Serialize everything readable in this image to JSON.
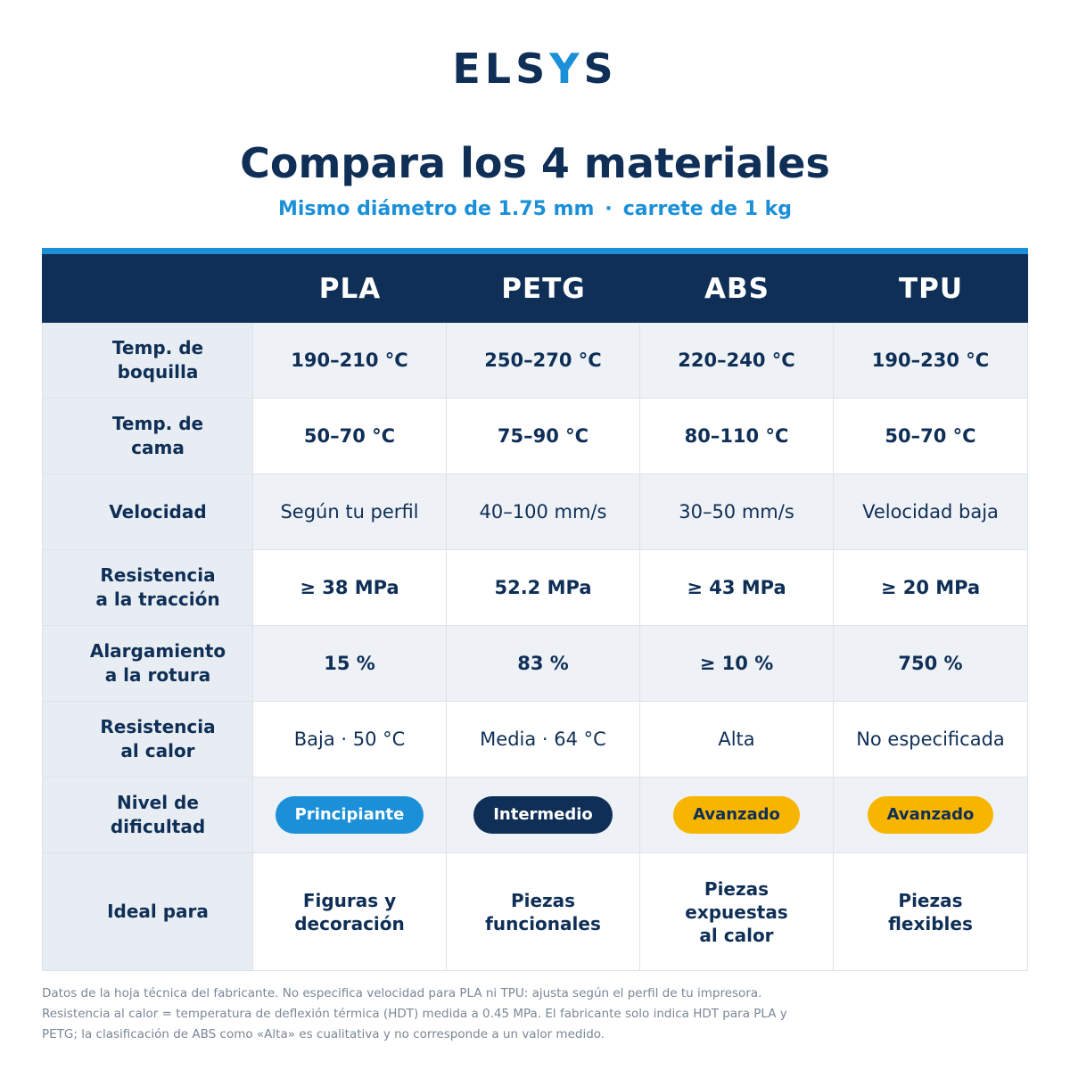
{
  "brand": {
    "logo_text_1": "ELS",
    "logo_text_2": "Y",
    "logo_text_3": "S"
  },
  "header": {
    "title": "Compara los 4 materiales",
    "subtitle_left": "Mismo diámetro de 1.75 mm",
    "subtitle_sep": "·",
    "subtitle_right": "carrete de 1 kg"
  },
  "colors": {
    "navy": "#0f2f57",
    "accent": "#1b90d8",
    "yellow": "#f7b500"
  },
  "table": {
    "columns": [
      "",
      "PLA",
      "PETG",
      "ABS",
      "TPU"
    ],
    "rows": [
      {
        "label": "Temp. de\nboquilla",
        "values": [
          "190–210 °C",
          "250–270 °C",
          "220–240 °C",
          "190–230 °C"
        ]
      },
      {
        "label": "Temp. de\ncama",
        "values": [
          "50–70 °C",
          "75–90 °C",
          "80–110 °C",
          "50–70 °C"
        ]
      },
      {
        "label": "Velocidad",
        "values": [
          "Según tu perfil",
          "40–100 mm/s",
          "30–50 mm/s",
          "Velocidad baja"
        ]
      },
      {
        "label": "Resistencia\na la tracción",
        "values": [
          "≥ 38 MPa",
          "52.2 MPa",
          "≥ 43 MPa",
          "≥ 20 MPa"
        ]
      },
      {
        "label": "Alargamiento\na la rotura",
        "values": [
          "15 %",
          "83 %",
          "≥ 10 %",
          "750 %"
        ]
      },
      {
        "label": "Resistencia\nal calor",
        "values": [
          "Baja · 50 °C",
          "Media · 64 °C",
          "Alta",
          "No especificada"
        ]
      },
      {
        "label": "Nivel de\ndificultad",
        "values": [
          "Principiante",
          "Intermedio",
          "Avanzado",
          "Avanzado"
        ]
      },
      {
        "label": "Ideal para",
        "values": [
          "Figuras y\ndecoración",
          "Piezas\nfuncionales",
          "Piezas\nexpuestas\nal calor",
          "Piezas\nflexibles"
        ]
      }
    ]
  },
  "footnote": {
    "line1": "Datos de la hoja técnica del fabricante. No especifica velocidad para PLA ni TPU: ajusta según el perfil de tu impresora.",
    "line2": "Resistencia al calor = temperatura de deflexión térmica (HDT) medida a 0.45 MPa. El fabricante solo indica HDT para PLA y",
    "line3": "PETG; la clasificación de ABS como «Alta» es cualitativa y no corresponde a un valor medido."
  }
}
